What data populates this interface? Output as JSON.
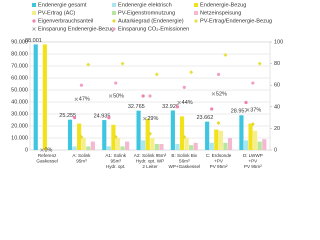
{
  "chart_data": {
    "type": "bar",
    "categories": [
      "Referenz\nGaskessel",
      "A: Solink\n95m³",
      "A1: Solink\n95m³\nHydr. opt.",
      "A2: Solink 95m³\nHydr. opt. WP\n2 Leiter",
      "B: Solink Biv\n56m³\nWP+Gaskessel",
      "C: Erdsonde\n+PV\nPV 95m²",
      "D: LWWP\n+PV\nPV 95m²"
    ],
    "ylim": [
      0,
      90000
    ],
    "yticks": [
      0,
      {
        "value": 10000,
        "label": "10.000"
      },
      {
        "value": 20000,
        "label": "20.000"
      },
      {
        "value": 30000,
        "label": "30.000"
      },
      {
        "value": 40000,
        "label": "40.000"
      },
      {
        "value": 50000,
        "label": "50.000"
      },
      {
        "value": 60000,
        "label": "60.000"
      },
      {
        "value": 70000,
        "label": "70.000"
      },
      {
        "value": 80000,
        "label": "80.000"
      },
      {
        "value": 90000,
        "label": "90.000"
      }
    ],
    "y2lim": [
      0,
      100
    ],
    "y2ticks": [
      0,
      20,
      40,
      60,
      80,
      100
    ],
    "grid": true,
    "series": [
      {
        "name": "Endenergie gesamt",
        "color": "#3ec6e0",
        "kind": "bar",
        "values": [
          88001,
          25255,
          24935,
          32765,
          32926,
          23662,
          28957
        ],
        "value_labels": [
          "88.001",
          "25.255",
          "24.935",
          "32.765",
          "32.926",
          "23.662",
          "28.957"
        ]
      },
      {
        "name": "Endenergie elektrisch",
        "color": "#a8e6f0",
        "kind": "bar",
        "values": [
          0,
          3000,
          3000,
          8000,
          5000,
          6000,
          8000
        ]
      },
      {
        "name": "Endenergie-Bezug",
        "color": "#f2e21c",
        "kind": "bar",
        "values": [
          88001,
          22000,
          21000,
          26000,
          28000,
          17000,
          22000
        ]
      },
      {
        "name": "PV-Ertrag (AC)",
        "color": "#f6ee8a",
        "kind": "bar",
        "values": [
          0,
          10000,
          10000,
          10000,
          10000,
          16000,
          16000
        ]
      },
      {
        "name": "PV-Eigenstromnutzung",
        "color": "#b8e6a0",
        "kind": "bar",
        "values": [
          0,
          3000,
          3000,
          5000,
          4000,
          6000,
          7000
        ]
      },
      {
        "name": "Netzeinspeisung",
        "color": "#f4b8d0",
        "kind": "bar",
        "values": [
          0,
          7000,
          7000,
          5000,
          6000,
          10000,
          9000
        ]
      },
      {
        "name": "Eigenverbrauchsanteil",
        "color": "#f080b0",
        "kind": "circle",
        "axis": "y2",
        "values": [
          null,
          30,
          30,
          50,
          40,
          38,
          44
        ]
      },
      {
        "name": "Autarkiegrad (Endenergie)",
        "color": "#e8d830",
        "kind": "diamond",
        "axis": "y2",
        "values": [
          null,
          12,
          12,
          15,
          12,
          25,
          24
        ]
      },
      {
        "name": "PV-Ertrag/Endenergie-Bezug",
        "color": "#e8e040",
        "kind": "diamond",
        "axis": "y2",
        "values": [
          null,
          79,
          80,
          70,
          72,
          88,
          80
        ]
      },
      {
        "name": "Einsparung Endenergie-Bezug",
        "color": "#8a8a8a",
        "kind": "cross",
        "axis": "y2",
        "values": [
          0,
          47,
          50,
          29,
          44,
          52,
          37
        ],
        "value_labels": [
          "0%",
          "47%",
          "50%",
          "29%",
          "44%",
          "52%",
          "37%"
        ]
      },
      {
        "name": "Einsparung CO₂-Emissionen",
        "color": "#f0a0c8",
        "kind": "circle",
        "axis": "y2",
        "values": [
          null,
          60,
          62,
          50,
          58,
          70,
          62
        ]
      }
    ]
  }
}
